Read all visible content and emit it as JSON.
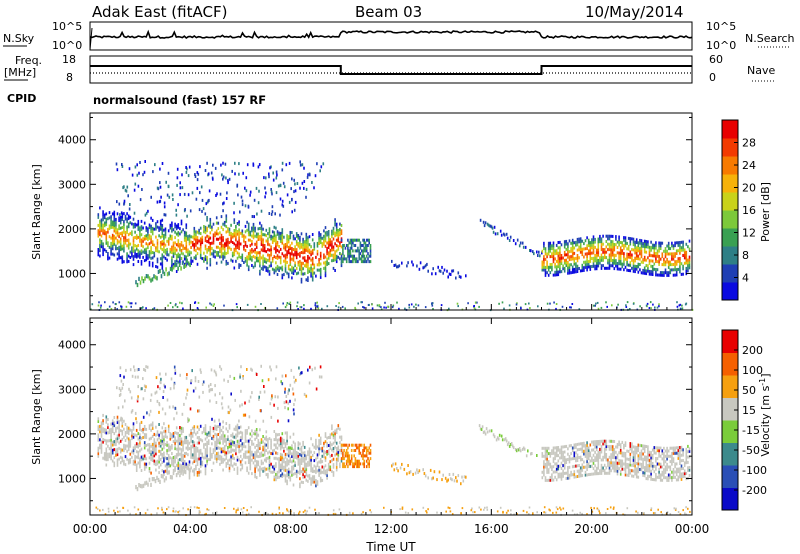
{
  "header": {
    "station": "Adak East (fitACF)",
    "beam": "Beam 03",
    "date": "10/May/2014"
  },
  "panels": {
    "nsky_label": "N.Sky",
    "nsky_ticks": [
      "10^5",
      "10^0"
    ],
    "nsearch_label": "N.Search",
    "nsearch_ticks": [
      "10^5",
      "10^0"
    ],
    "freq_label_1": "Freq.",
    "freq_label_2": "[MHz]",
    "freq_ticks": [
      "18",
      "8"
    ],
    "nave_label": "Nave",
    "nave_ticks": [
      "60",
      "0"
    ],
    "cpid_label": "CPID",
    "cpid_value": "normalsound (fast) 157 RF"
  },
  "chart_data": [
    {
      "type": "heatmap",
      "name": "power",
      "ylabel": "Slant Range [km]",
      "yticks": [
        1000,
        2000,
        3000,
        4000
      ],
      "ylim": [
        180,
        4600
      ],
      "colorbar_label": "Power [dB]",
      "colorbar_ticks": [
        "28",
        "24",
        "20",
        "16",
        "12",
        "8",
        "4"
      ],
      "colors": [
        "#0a0ae0",
        "#1f3fb4",
        "#2e7f86",
        "#39a052",
        "#7cc93a",
        "#c9d21a",
        "#f6b20a",
        "#f77a00",
        "#f33a00",
        "#e80000"
      ]
    },
    {
      "type": "heatmap",
      "name": "velocity",
      "ylabel": "Slant Range [km]",
      "yticks": [
        1000,
        2000,
        3000,
        4000
      ],
      "ylim": [
        180,
        4600
      ],
      "colorbar_label": "Velocity [m s",
      "colorbar_label_sup": "-1",
      "colorbar_label_end": "]",
      "colorbar_ticks": [
        "200",
        "100",
        "50",
        "15",
        "-15",
        "-50",
        "-100",
        "-200"
      ],
      "colors": [
        "#0a0ac8",
        "#2a4fb6",
        "#3c8a8c",
        "#7acc3a",
        "#c8c8c0",
        "#f6a010",
        "#f56000",
        "#e80000"
      ]
    }
  ],
  "xaxis": {
    "label": "Time UT",
    "ticks": [
      "00:00",
      "04:00",
      "08:00",
      "12:00",
      "16:00",
      "20:00",
      "00:00"
    ]
  }
}
